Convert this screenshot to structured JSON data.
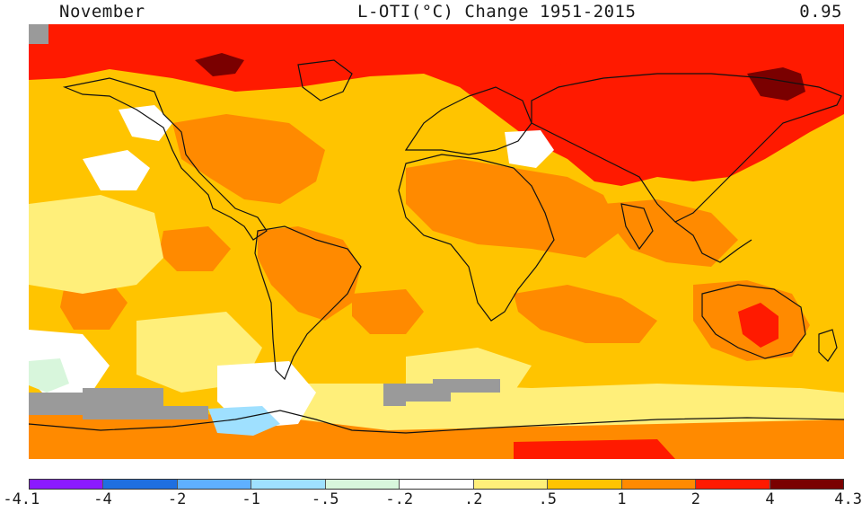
{
  "header": {
    "month": "November",
    "title": "L-OTI(°C) Change 1951-2015",
    "global_mean": "0.95"
  },
  "legend": {
    "breaks": [
      "-4.1",
      "-4",
      "-2",
      "-1",
      "-.5",
      "-.2",
      ".2",
      ".5",
      "1",
      "2",
      "4",
      "4.3"
    ],
    "colors": [
      "#8b1aff",
      "#1f6fe0",
      "#5fb0ff",
      "#9fe0ff",
      "#d8f6dc",
      "#ffffff",
      "#ffef7a",
      "#ffc400",
      "#ff8a00",
      "#ff1a00",
      "#7a0000"
    ],
    "missing_color": "#9a9a9a"
  },
  "map": {
    "projection": "equirectangular",
    "background_color": "#ffc400"
  }
}
